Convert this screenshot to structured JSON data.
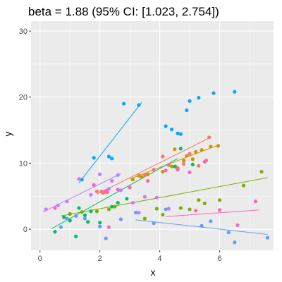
{
  "chart_data": {
    "type": "scatter",
    "title": "beta = 1.88 (95% CI: [1.023, 2.754])",
    "xlabel": "x",
    "ylabel": "y",
    "xlim": [
      -0.3,
      7.8
    ],
    "ylim": [
      -3.2,
      31.5
    ],
    "xticks": [
      0,
      2,
      4,
      6
    ],
    "yticks": [
      0,
      10,
      20,
      30
    ],
    "xtick_labels": [
      "0",
      "2",
      "4",
      "6"
    ],
    "ytick_labels": [
      "0",
      "10",
      "20",
      "30"
    ],
    "grid": true,
    "background": "#ebebeb",
    "grid_color": "#ffffff",
    "legend": "none",
    "series": [
      {
        "color": "#f8766d",
        "points": [
          [
            1.9,
            5.7
          ],
          [
            2.15,
            5.6
          ],
          [
            2.05,
            5.7
          ],
          [
            2.25,
            5.6
          ],
          [
            3.5,
            8.2
          ],
          [
            3.8,
            9.0
          ],
          [
            4.1,
            11.0
          ],
          [
            4.3,
            9.7
          ],
          [
            4.55,
            9.4
          ],
          [
            4.8,
            9.9
          ],
          [
            5.0,
            11.4
          ],
          [
            5.3,
            9.6
          ],
          [
            5.55,
            10.4
          ],
          [
            5.65,
            13.9
          ],
          [
            2.1,
            5.5
          ]
        ],
        "fit": [
          [
            1.9,
            5.3
          ],
          [
            5.7,
            13.9
          ]
        ]
      },
      {
        "color": "#cd9600",
        "points": [
          [
            3.1,
            7.5
          ],
          [
            3.4,
            7.9
          ],
          [
            3.6,
            8.3
          ],
          [
            4.1,
            8.7
          ],
          [
            4.4,
            9.5
          ],
          [
            4.6,
            9.2
          ],
          [
            4.8,
            10.4
          ],
          [
            5.1,
            10.6
          ],
          [
            5.4,
            12.0
          ],
          [
            5.7,
            12.5
          ],
          [
            5.95,
            12.6
          ],
          [
            4.5,
            12.1
          ],
          [
            4.9,
            11.1
          ],
          [
            5.2,
            11.7
          ],
          [
            3.3,
            8.1
          ]
        ],
        "fit": [
          [
            3.0,
            7.6
          ],
          [
            6.0,
            12.8
          ]
        ]
      },
      {
        "color": "#7cae00",
        "points": [
          [
            1.0,
            2.3
          ],
          [
            1.4,
            2.6
          ],
          [
            1.9,
            2.7
          ],
          [
            2.3,
            3.0
          ],
          [
            2.5,
            3.4
          ],
          [
            3.5,
            1.6
          ],
          [
            3.9,
            3.1
          ],
          [
            4.1,
            2.2
          ],
          [
            4.7,
            3.2
          ],
          [
            5.0,
            3.0
          ],
          [
            5.5,
            3.9
          ],
          [
            6.0,
            4.4
          ],
          [
            6.8,
            6.6
          ],
          [
            7.4,
            8.7
          ],
          [
            5.3,
            4.4
          ]
        ],
        "fit": [
          [
            0.7,
            2.0
          ],
          [
            7.6,
            7.8
          ]
        ]
      },
      {
        "color": "#00be67",
        "points": [
          [
            0.5,
            -0.4
          ],
          [
            0.8,
            1.8
          ],
          [
            1.0,
            1.3
          ],
          [
            1.2,
            -1.1
          ],
          [
            1.3,
            3.2
          ],
          [
            1.6,
            1.1
          ],
          [
            1.7,
            2.7
          ],
          [
            2.0,
            1.0
          ],
          [
            2.4,
            3.4
          ],
          [
            2.6,
            4.0
          ],
          [
            2.9,
            4.6
          ],
          [
            4.5,
            9.5
          ],
          [
            5.1,
            9.8
          ],
          [
            4.7,
            12.2
          ],
          [
            1.5,
            2.1
          ]
        ],
        "fit": [
          [
            0.4,
            0.1
          ],
          [
            4.6,
            10.7
          ]
        ]
      },
      {
        "color": "#00a9ff",
        "points": [
          [
            1.4,
            7.5
          ],
          [
            1.8,
            10.8
          ],
          [
            2.3,
            11.0
          ],
          [
            2.4,
            10.7
          ],
          [
            2.8,
            19.0
          ],
          [
            3.3,
            18.8
          ],
          [
            4.2,
            15.6
          ],
          [
            4.4,
            15.1
          ],
          [
            4.6,
            14.5
          ],
          [
            4.7,
            14.4
          ],
          [
            4.9,
            18.0
          ],
          [
            5.0,
            19.4
          ],
          [
            5.3,
            19.9
          ],
          [
            5.8,
            20.6
          ],
          [
            6.5,
            20.8
          ]
        ],
        "fit": [
          [
            1.3,
            7.0
          ],
          [
            3.4,
            19.2
          ]
        ]
      },
      {
        "color": "#c77cff",
        "points": [
          [
            0.2,
            3.0
          ],
          [
            0.6,
            3.6
          ],
          [
            0.9,
            4.2
          ],
          [
            1.3,
            7.6
          ],
          [
            1.7,
            5.2
          ],
          [
            2.0,
            8.3
          ],
          [
            2.3,
            6.1
          ],
          [
            2.4,
            7.3
          ],
          [
            2.6,
            8.2
          ],
          [
            2.7,
            5.9
          ],
          [
            3.1,
            4.0
          ],
          [
            3.3,
            2.5
          ],
          [
            3.5,
            4.9
          ],
          [
            3.9,
            4.8
          ],
          [
            4.3,
            3.1
          ]
        ],
        "fit": [
          [
            0.1,
            2.6
          ],
          [
            2.7,
            8.4
          ]
        ]
      },
      {
        "color": "#619cff",
        "points": [
          [
            0.7,
            0.3
          ],
          [
            1.2,
            2.0
          ],
          [
            1.5,
            1.6
          ],
          [
            2.2,
            -1.4
          ],
          [
            2.7,
            1.5
          ],
          [
            3.2,
            2.5
          ],
          [
            4.2,
            3.0
          ],
          [
            5.4,
            0.5
          ],
          [
            6.5,
            -2.0
          ],
          [
            7.6,
            -1.3
          ],
          [
            6.3,
            -0.5
          ],
          [
            5.7,
            1.2
          ],
          [
            3.8,
            0.9
          ],
          [
            0.9,
            1.6
          ],
          [
            2.0,
            0.4
          ]
        ],
        "fit": [
          [
            3.2,
            1.4
          ],
          [
            7.6,
            -0.8
          ]
        ]
      },
      {
        "color": "#ff61c3",
        "points": [
          [
            0.5,
            3.2
          ],
          [
            1.8,
            6.7
          ],
          [
            2.2,
            5.8
          ],
          [
            2.6,
            6.0
          ],
          [
            3.0,
            6.3
          ],
          [
            3.6,
            7.3
          ],
          [
            4.2,
            8.9
          ],
          [
            4.6,
            9.0
          ],
          [
            5.0,
            8.6
          ],
          [
            5.5,
            10.2
          ],
          [
            6.0,
            2.9
          ],
          [
            6.6,
            0.6
          ],
          [
            7.2,
            4.2
          ],
          [
            2.3,
            0.3
          ],
          [
            5.2,
            2.8
          ]
        ],
        "fit": [
          [
            4.2,
            1.9
          ],
          [
            7.3,
            2.9
          ]
        ]
      }
    ]
  }
}
